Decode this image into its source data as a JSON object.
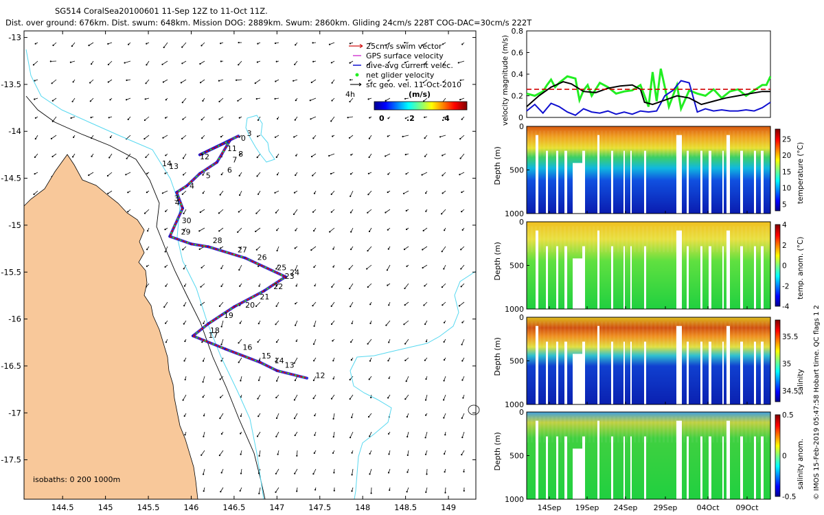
{
  "title": {
    "line1": "SG514 CoralSea20100601 11-Sep 12Z to 11-Oct 11Z.",
    "line2": "Dist. over ground: 676km. Dist. swum: 648km. Mission DOG: 2889km. Swum: 2860km. Gliding 24cm/s 228T COG-DAC=30cm/s 222T"
  },
  "credit": "© IMOS 15-Feb-2019 05:47:58 Hobart time. QC flags 1  2",
  "colors": {
    "land": "#f8c89a",
    "coast_contour": "#55d8f0",
    "track_red": "#d01010",
    "velocity_green": "#22ee22",
    "velocity_blue": "#1010d0",
    "velocity_black": "#000000",
    "velocity_dashed_red": "#d00000"
  },
  "chart_data": [
    {
      "type": "map",
      "name": "glider-track-map",
      "x_ticks": [
        "144.5",
        "145",
        "145.5",
        "146",
        "146.5",
        "147",
        "147.5",
        "148",
        "148.5",
        "149"
      ],
      "y_ticks": [
        "-13",
        "-13.5",
        "-14",
        "-14.5",
        "-15",
        "-15.5",
        "-16",
        "-16.5",
        "-17",
        "-17.5"
      ],
      "xlim": [
        144.05,
        149.32
      ],
      "ylim": [
        -17.92,
        -12.93
      ],
      "legend": [
        {
          "label": "25cm/s swim vector",
          "color": "#d01010",
          "marker": "arrow"
        },
        {
          "label": "GPS surface velocity",
          "color": "#cc22cc",
          "marker": "arrow"
        },
        {
          "label": "dive-avg current velec.",
          "color": "#1010d0",
          "marker": "arrow"
        },
        {
          "label": "net glider velocity",
          "color": "#22ee22",
          "marker": "dot"
        },
        {
          "label": "sfc geo. vel. 11-Oct-2010",
          "color": "#000000",
          "marker": "arrow"
        }
      ],
      "colorbar": {
        "unit": "(m/s)",
        "label_4h": "4h",
        "ticks": [
          "0",
          ".2",
          ".4"
        ],
        "range": [
          0,
          0.5
        ]
      },
      "isobaths_label": "isobaths: 0   200  1000m",
      "track": [
        {
          "lon": 146.55,
          "lat": -14.05
        },
        {
          "lon": 146.1,
          "lat": -14.25
        },
        {
          "lon": 146.45,
          "lat": -14.1
        },
        {
          "lon": 146.3,
          "lat": -14.33
        },
        {
          "lon": 146.1,
          "lat": -14.45
        },
        {
          "lon": 145.95,
          "lat": -14.58
        },
        {
          "lon": 145.83,
          "lat": -14.65
        },
        {
          "lon": 145.9,
          "lat": -14.82
        },
        {
          "lon": 145.75,
          "lat": -15.12
        },
        {
          "lon": 146.0,
          "lat": -15.2
        },
        {
          "lon": 146.2,
          "lat": -15.23
        },
        {
          "lon": 146.63,
          "lat": -15.35
        },
        {
          "lon": 147.1,
          "lat": -15.55
        },
        {
          "lon": 146.85,
          "lat": -15.7
        },
        {
          "lon": 146.5,
          "lat": -15.87
        },
        {
          "lon": 146.2,
          "lat": -16.05
        },
        {
          "lon": 146.02,
          "lat": -16.18
        },
        {
          "lon": 146.4,
          "lat": -16.32
        },
        {
          "lon": 146.8,
          "lat": -16.46
        },
        {
          "lon": 147.0,
          "lat": -16.55
        },
        {
          "lon": 147.35,
          "lat": -16.63
        }
      ],
      "day_labels": [
        {
          "text": "0",
          "lon": 146.58,
          "lat": -14.1
        },
        {
          "text": "3",
          "lon": 146.65,
          "lat": -14.05
        },
        {
          "text": "11",
          "lon": 146.42,
          "lat": -14.21
        },
        {
          "text": "8",
          "lon": 146.55,
          "lat": -14.27
        },
        {
          "text": "12",
          "lon": 146.1,
          "lat": -14.3
        },
        {
          "text": "7",
          "lon": 146.48,
          "lat": -14.33
        },
        {
          "text": "6",
          "lon": 146.42,
          "lat": -14.44
        },
        {
          "text": "5",
          "lon": 146.17,
          "lat": -14.5
        },
        {
          "text": "14",
          "lon": 145.66,
          "lat": -14.37
        },
        {
          "text": "13",
          "lon": 145.74,
          "lat": -14.4
        },
        {
          "text": "4",
          "lon": 145.98,
          "lat": -14.61
        },
        {
          "text": "3",
          "lon": 145.8,
          "lat": -14.74
        },
        {
          "text": "4",
          "lon": 145.81,
          "lat": -14.79
        },
        {
          "text": "30",
          "lon": 145.89,
          "lat": -14.98
        },
        {
          "text": "29",
          "lon": 145.88,
          "lat": -15.1
        },
        {
          "text": "28",
          "lon": 146.25,
          "lat": -15.19
        },
        {
          "text": "27",
          "lon": 146.54,
          "lat": -15.29
        },
        {
          "text": "26",
          "lon": 146.77,
          "lat": -15.37
        },
        {
          "text": "25",
          "lon": 147.0,
          "lat": -15.48
        },
        {
          "text": "24",
          "lon": 147.15,
          "lat": -15.53
        },
        {
          "text": "23",
          "lon": 147.09,
          "lat": -15.57
        },
        {
          "text": "22",
          "lon": 146.96,
          "lat": -15.68
        },
        {
          "text": "21",
          "lon": 146.8,
          "lat": -15.79
        },
        {
          "text": "20",
          "lon": 146.63,
          "lat": -15.88
        },
        {
          "text": "19",
          "lon": 146.38,
          "lat": -15.99
        },
        {
          "text": "18",
          "lon": 146.22,
          "lat": -16.15
        },
        {
          "text": "17",
          "lon": 146.2,
          "lat": -16.2
        },
        {
          "text": "16",
          "lon": 146.6,
          "lat": -16.33
        },
        {
          "text": "15",
          "lon": 146.82,
          "lat": -16.42
        },
        {
          "text": "14",
          "lon": 146.97,
          "lat": -16.47
        },
        {
          "text": "13",
          "lon": 147.09,
          "lat": -16.52
        },
        {
          "text": "12",
          "lon": 147.45,
          "lat": -16.63
        }
      ]
    },
    {
      "type": "line",
      "name": "velocity-magnitude",
      "ylabel": "velocity magnitude (m/s)",
      "y_ticks": [
        "0",
        "0.2",
        "0.4",
        "0.6",
        "0.8"
      ],
      "ylim": [
        0,
        0.8
      ],
      "x_range_days": [
        0,
        30
      ],
      "series": [
        {
          "name": "net glider velocity",
          "color": "#22ee22",
          "x": [
            0,
            1,
            2,
            2.5,
            3,
            3.5,
            4,
            5,
            6,
            6.5,
            7,
            7.5,
            8,
            9,
            10,
            11,
            12,
            13,
            14,
            14.5,
            15,
            15.5,
            16,
            16.5,
            17,
            17.5,
            18,
            18.5,
            19,
            20,
            21,
            22,
            23,
            24,
            25,
            26,
            27,
            28,
            29,
            29.5,
            30
          ],
          "values": [
            0.22,
            0.2,
            0.24,
            0.3,
            0.35,
            0.28,
            0.32,
            0.38,
            0.36,
            0.16,
            0.25,
            0.3,
            0.2,
            0.32,
            0.28,
            0.22,
            0.24,
            0.25,
            0.3,
            0.2,
            0.1,
            0.42,
            0.15,
            0.45,
            0.28,
            0.1,
            0.2,
            0.3,
            0.08,
            0.25,
            0.22,
            0.2,
            0.26,
            0.18,
            0.24,
            0.26,
            0.2,
            0.25,
            0.3,
            0.3,
            0.38
          ]
        },
        {
          "name": "dive-avg current",
          "color": "#1010d0",
          "x": [
            0,
            1,
            2,
            3,
            4,
            5,
            6,
            7,
            8,
            9,
            10,
            11,
            12,
            13,
            14,
            15,
            16,
            17,
            18,
            19,
            20,
            21,
            22,
            23,
            24,
            25,
            26,
            27,
            28,
            29,
            30
          ],
          "values": [
            0.06,
            0.12,
            0.04,
            0.13,
            0.1,
            0.05,
            0.02,
            0.08,
            0.05,
            0.04,
            0.06,
            0.03,
            0.05,
            0.03,
            0.06,
            0.05,
            0.06,
            0.2,
            0.25,
            0.34,
            0.32,
            0.05,
            0.08,
            0.06,
            0.07,
            0.06,
            0.06,
            0.07,
            0.06,
            0.09,
            0.14
          ]
        },
        {
          "name": "sfc geo. vel.",
          "color": "#000000",
          "x": [
            0,
            1.5,
            3,
            4.5,
            5.5,
            7,
            8.5,
            10,
            11.5,
            13,
            14,
            14.5,
            15.5,
            17,
            18.5,
            20,
            21.5,
            23,
            24.5,
            26,
            27.5,
            29,
            30
          ],
          "values": [
            0.1,
            0.2,
            0.28,
            0.33,
            0.31,
            0.24,
            0.23,
            0.27,
            0.29,
            0.3,
            0.26,
            0.14,
            0.12,
            0.16,
            0.2,
            0.18,
            0.12,
            0.15,
            0.18,
            0.2,
            0.22,
            0.24,
            0.24
          ]
        },
        {
          "name": "mean glider velocity",
          "color": "#d00000",
          "dashed": true,
          "x": [
            0,
            30
          ],
          "values": [
            0.26,
            0.26
          ]
        }
      ]
    },
    {
      "type": "heatmap",
      "name": "temperature-section",
      "ylabel": "Depth (m)",
      "y_ticks": [
        "0",
        "500",
        "1000"
      ],
      "ylim": [
        0,
        1000
      ],
      "colorbar_label": "temperature (°C)",
      "colorbar_ticks": [
        "25",
        "20",
        "15",
        "10",
        "5"
      ],
      "range": [
        3,
        28
      ]
    },
    {
      "type": "heatmap",
      "name": "temperature-anomaly-section",
      "ylabel": "Depth (m)",
      "y_ticks": [
        "0",
        "500",
        "1000"
      ],
      "ylim": [
        0,
        1000
      ],
      "colorbar_label": "temp. anom. (°C)",
      "colorbar_ticks": [
        "4",
        "2",
        "0",
        "-2",
        "-4"
      ],
      "range": [
        -4,
        4
      ]
    },
    {
      "type": "heatmap",
      "name": "salinity-section",
      "ylabel": "Depth (m)",
      "y_ticks": [
        "0",
        "500",
        "1000"
      ],
      "ylim": [
        0,
        1000
      ],
      "colorbar_label": "salinity",
      "colorbar_ticks": [
        "35.5",
        "35",
        "34.5"
      ],
      "range": [
        34.3,
        35.8
      ]
    },
    {
      "type": "heatmap",
      "name": "salinity-anomaly-section",
      "ylabel": "Depth (m)",
      "y_ticks": [
        "0",
        "500",
        "1000"
      ],
      "ylim": [
        0,
        1000
      ],
      "colorbar_label": "salinity anom.",
      "colorbar_ticks": [
        "0.5",
        "0",
        "-0.5"
      ],
      "range": [
        -0.5,
        0.5
      ],
      "x_ticks": [
        "14Sep",
        "19Sep",
        "24Sep",
        "29Sep",
        "04Oct",
        "09Oct"
      ]
    }
  ]
}
